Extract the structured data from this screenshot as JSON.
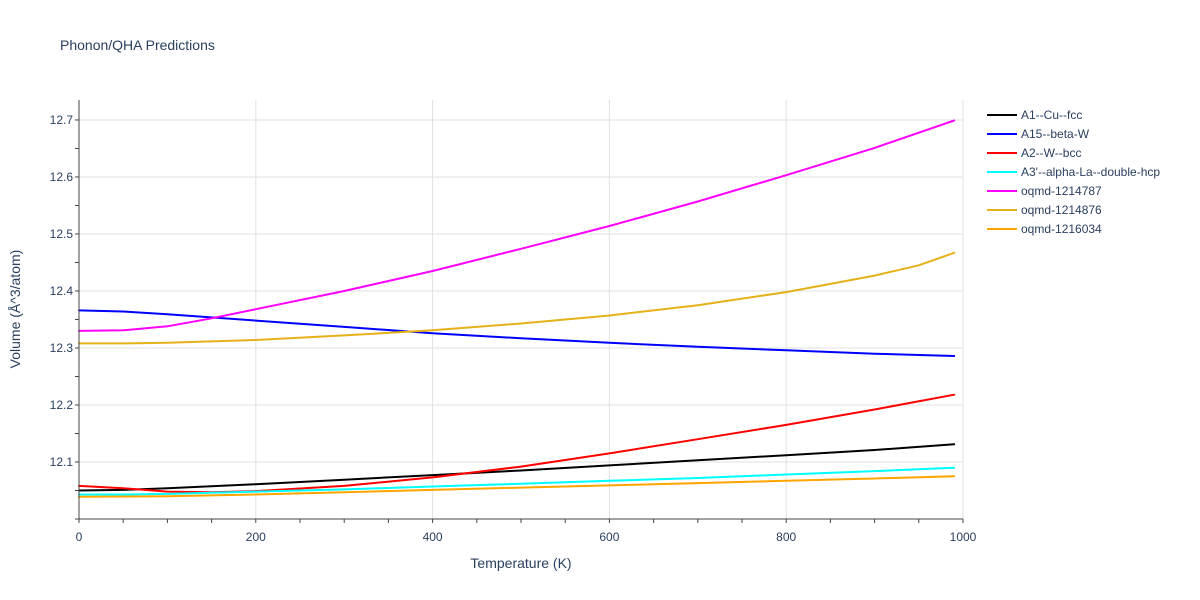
{
  "chart_data": {
    "type": "line",
    "title": "Phonon/QHA Predictions",
    "xlabel": "Temperature (K)",
    "ylabel": "Volume (Å^3/atom)",
    "xlim": [
      0,
      1000
    ],
    "ylim": [
      12.0,
      12.735
    ],
    "xticks": [
      0,
      200,
      400,
      600,
      800,
      1000
    ],
    "yticks": [
      12.1,
      12.2,
      12.3,
      12.4,
      12.5,
      12.6,
      12.7
    ],
    "grid": true,
    "legend_position": "top-right",
    "series": [
      {
        "name": "A1--Cu--fcc",
        "color": "#000000",
        "x": [
          0,
          50,
          100,
          200,
          300,
          400,
          500,
          600,
          700,
          800,
          900,
          990
        ],
        "y": [
          12.05,
          12.051,
          12.054,
          12.061,
          12.069,
          12.077,
          12.085,
          12.094,
          12.103,
          12.112,
          12.121,
          12.131
        ]
      },
      {
        "name": "A15--beta-W",
        "color": "#0000ff",
        "x": [
          0,
          50,
          100,
          200,
          300,
          400,
          500,
          600,
          700,
          800,
          900,
          990
        ],
        "y": [
          12.366,
          12.364,
          12.359,
          12.348,
          12.337,
          12.326,
          12.317,
          12.309,
          12.302,
          12.296,
          12.29,
          12.286
        ]
      },
      {
        "name": "A2--W--bcc",
        "color": "#ff0000",
        "x": [
          0,
          50,
          100,
          150,
          200,
          300,
          400,
          500,
          600,
          700,
          800,
          900,
          990
        ],
        "y": [
          12.058,
          12.054,
          12.048,
          12.047,
          12.049,
          12.058,
          12.073,
          12.092,
          12.115,
          12.14,
          12.165,
          12.192,
          12.218
        ]
      },
      {
        "name": "A3'--alpha-La--double-hcp",
        "color": "#00ffff",
        "x": [
          0,
          50,
          100,
          200,
          300,
          400,
          500,
          600,
          700,
          800,
          900,
          990
        ],
        "y": [
          12.043,
          12.043,
          12.044,
          12.048,
          12.052,
          12.057,
          12.062,
          12.067,
          12.072,
          12.078,
          12.084,
          12.09
        ]
      },
      {
        "name": "oqmd-1214787",
        "color": "#ff00ff",
        "x": [
          0,
          50,
          100,
          150,
          200,
          300,
          400,
          500,
          600,
          700,
          800,
          900,
          990
        ],
        "y": [
          12.33,
          12.331,
          12.338,
          12.352,
          12.368,
          12.4,
          12.435,
          12.474,
          12.514,
          12.557,
          12.603,
          12.651,
          12.699
        ]
      },
      {
        "name": "oqmd-1214876",
        "color": "#e6b019",
        "x": [
          0,
          50,
          100,
          200,
          300,
          400,
          500,
          600,
          700,
          800,
          900,
          950,
          990
        ],
        "y": [
          12.308,
          12.308,
          12.309,
          12.314,
          12.322,
          12.331,
          12.343,
          12.357,
          12.375,
          12.398,
          12.427,
          12.445,
          12.467
        ]
      },
      {
        "name": "oqmd-1216034",
        "color": "#ffa500",
        "x": [
          0,
          100,
          200,
          300,
          400,
          500,
          600,
          700,
          800,
          900,
          990
        ],
        "y": [
          12.039,
          12.04,
          12.043,
          12.047,
          12.051,
          12.055,
          12.059,
          12.063,
          12.067,
          12.071,
          12.075
        ]
      }
    ]
  }
}
